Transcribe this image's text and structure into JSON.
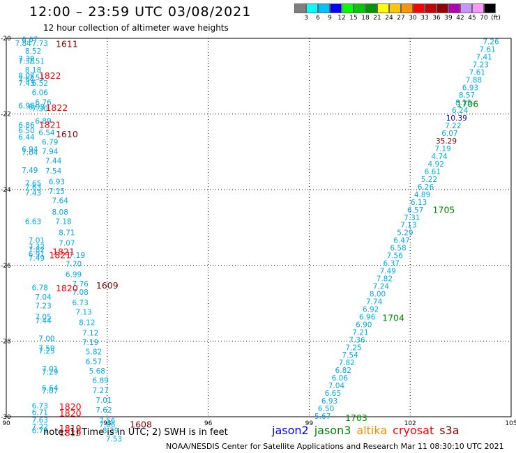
{
  "header": {
    "title": "12:00 – 23:59 UTC 03/08/2021",
    "subtitle": "12 hour collection of altimeter wave heights"
  },
  "colorbar": {
    "labels": [
      "3",
      "6",
      "9",
      "12",
      "15",
      "18",
      "21",
      "24",
      "27",
      "30",
      "33",
      "36",
      "39",
      "42",
      "45",
      "70",
      "(ft)"
    ],
    "colors": [
      "#7f7f7f",
      "#00ffff",
      "#00bfff",
      "#0000ff",
      "#00ff00",
      "#00c800",
      "#009600",
      "#ffff00",
      "#ffc800",
      "#ff9600",
      "#ff0000",
      "#c80000",
      "#960000",
      "#b400b4",
      "#c896ff",
      "#ff96ff",
      "#000000"
    ]
  },
  "axes": {
    "x_ticks": [
      "90",
      "93",
      "96",
      "99",
      "102",
      "105"
    ],
    "y_ticks": [
      "-20",
      "-22",
      "-24",
      "-26",
      "-28",
      "-30"
    ]
  },
  "labels": {
    "swh_color": "#00aaee",
    "time_colors": {
      "dark": "#8b0000",
      "red": "#ff0000",
      "green": "#008800"
    },
    "west_swh": [
      {
        "lon": 90.7,
        "lat": -20.05,
        "v": "6.67"
      },
      {
        "lon": 90.5,
        "lat": -20.15,
        "v": "7.84"
      },
      {
        "lon": 91.0,
        "lat": -20.15,
        "v": "7.73"
      },
      {
        "lon": 90.8,
        "lat": -20.35,
        "v": "8.52"
      },
      {
        "lon": 90.6,
        "lat": -20.55,
        "v": "7.39"
      },
      {
        "lon": 90.6,
        "lat": -20.62,
        "v": "7.38"
      },
      {
        "lon": 90.9,
        "lat": -20.62,
        "v": "7.51"
      },
      {
        "lon": 90.8,
        "lat": -20.85,
        "v": "8.18"
      },
      {
        "lon": 90.6,
        "lat": -21.0,
        "v": "8.07"
      },
      {
        "lon": 90.9,
        "lat": -21.05,
        "v": "7.51"
      },
      {
        "lon": 90.6,
        "lat": -21.1,
        "v": "7.67"
      },
      {
        "lon": 90.6,
        "lat": -21.2,
        "v": "7.43"
      },
      {
        "lon": 91.0,
        "lat": -21.2,
        "v": "6.52"
      },
      {
        "lon": 91.0,
        "lat": -21.45,
        "v": "6.06"
      },
      {
        "lon": 91.1,
        "lat": -21.7,
        "v": "6.76"
      },
      {
        "lon": 90.6,
        "lat": -21.8,
        "v": "6.98"
      },
      {
        "lon": 90.9,
        "lat": -21.82,
        "v": "6.93"
      },
      {
        "lon": 91.0,
        "lat": -21.87,
        "v": "7.30"
      },
      {
        "lon": 91.1,
        "lat": -22.2,
        "v": "6.89"
      },
      {
        "lon": 90.6,
        "lat": -22.3,
        "v": "6.86"
      },
      {
        "lon": 90.6,
        "lat": -22.45,
        "v": "6.50"
      },
      {
        "lon": 91.2,
        "lat": -22.5,
        "v": "6.54"
      },
      {
        "lon": 90.6,
        "lat": -22.62,
        "v": "6.44"
      },
      {
        "lon": 91.3,
        "lat": -22.75,
        "v": "6.79"
      },
      {
        "lon": 90.7,
        "lat": -22.95,
        "v": "6.94"
      },
      {
        "lon": 90.7,
        "lat": -23.03,
        "v": "7.04"
      },
      {
        "lon": 91.3,
        "lat": -23.0,
        "v": "7.94"
      },
      {
        "lon": 91.4,
        "lat": -23.25,
        "v": "7.44"
      },
      {
        "lon": 90.7,
        "lat": -23.5,
        "v": "7.49"
      },
      {
        "lon": 91.4,
        "lat": -23.52,
        "v": "7.54"
      },
      {
        "lon": 91.5,
        "lat": -23.8,
        "v": "6.93"
      },
      {
        "lon": 90.8,
        "lat": -23.85,
        "v": "7.65"
      },
      {
        "lon": 90.8,
        "lat": -23.95,
        "v": "7.63"
      },
      {
        "lon": 91.5,
        "lat": -24.05,
        "v": "7.15"
      },
      {
        "lon": 90.8,
        "lat": -24.1,
        "v": "7.43"
      },
      {
        "lon": 91.6,
        "lat": -24.3,
        "v": "7.64"
      },
      {
        "lon": 91.6,
        "lat": -24.6,
        "v": "8.08"
      },
      {
        "lon": 90.8,
        "lat": -24.85,
        "v": "6.63"
      },
      {
        "lon": 91.7,
        "lat": -24.85,
        "v": "7.18"
      },
      {
        "lon": 91.8,
        "lat": -25.15,
        "v": "8.71"
      },
      {
        "lon": 90.9,
        "lat": -25.35,
        "v": "7.01"
      },
      {
        "lon": 91.8,
        "lat": -25.42,
        "v": "7.07"
      },
      {
        "lon": 90.9,
        "lat": -25.52,
        "v": "7.32"
      },
      {
        "lon": 90.9,
        "lat": -25.6,
        "v": "7.82"
      },
      {
        "lon": 90.9,
        "lat": -25.72,
        "v": "6.91"
      },
      {
        "lon": 90.9,
        "lat": -25.82,
        "v": "7.49"
      },
      {
        "lon": 92.1,
        "lat": -25.75,
        "v": "7.19"
      },
      {
        "lon": 92.0,
        "lat": -25.98,
        "v": "7.70"
      },
      {
        "lon": 92.0,
        "lat": -26.25,
        "v": "6.99"
      },
      {
        "lon": 92.2,
        "lat": -26.5,
        "v": "7.76"
      },
      {
        "lon": 91.0,
        "lat": -26.6,
        "v": "6.78"
      },
      {
        "lon": 92.2,
        "lat": -26.72,
        "v": "7.08"
      },
      {
        "lon": 91.1,
        "lat": -26.85,
        "v": "7.04"
      },
      {
        "lon": 92.2,
        "lat": -27.0,
        "v": "6.73"
      },
      {
        "lon": 91.1,
        "lat": -27.08,
        "v": "7.23"
      },
      {
        "lon": 92.3,
        "lat": -27.25,
        "v": "7.13"
      },
      {
        "lon": 91.1,
        "lat": -27.38,
        "v": "7.05"
      },
      {
        "lon": 91.1,
        "lat": -27.48,
        "v": "7.44"
      },
      {
        "lon": 92.4,
        "lat": -27.52,
        "v": "8.12"
      },
      {
        "lon": 92.5,
        "lat": -27.8,
        "v": "7.12"
      },
      {
        "lon": 91.2,
        "lat": -27.95,
        "v": "7.00"
      },
      {
        "lon": 92.5,
        "lat": -28.05,
        "v": "7.19"
      },
      {
        "lon": 91.2,
        "lat": -28.2,
        "v": "7.59"
      },
      {
        "lon": 91.2,
        "lat": -28.28,
        "v": "7.25"
      },
      {
        "lon": 92.6,
        "lat": -28.3,
        "v": "5.82"
      },
      {
        "lon": 92.6,
        "lat": -28.55,
        "v": "6.57"
      },
      {
        "lon": 91.3,
        "lat": -28.75,
        "v": "7.01"
      },
      {
        "lon": 91.3,
        "lat": -28.83,
        "v": "7.29"
      },
      {
        "lon": 92.7,
        "lat": -28.8,
        "v": "5.68"
      },
      {
        "lon": 92.8,
        "lat": -29.05,
        "v": "6.89"
      },
      {
        "lon": 91.3,
        "lat": -29.25,
        "v": "6.64"
      },
      {
        "lon": 91.3,
        "lat": -29.33,
        "v": "7.07"
      },
      {
        "lon": 92.8,
        "lat": -29.32,
        "v": "7.27"
      },
      {
        "lon": 92.9,
        "lat": -29.58,
        "v": "7.01"
      },
      {
        "lon": 91.0,
        "lat": -29.72,
        "v": "6.73"
      },
      {
        "lon": 92.9,
        "lat": -29.83,
        "v": "7.62"
      },
      {
        "lon": 91.0,
        "lat": -29.9,
        "v": "6.71"
      },
      {
        "lon": 91.0,
        "lat": -30.1,
        "v": "7.63"
      },
      {
        "lon": 93.0,
        "lat": -30.12,
        "v": "7.56"
      },
      {
        "lon": 93.0,
        "lat": -30.22,
        "v": "7.86"
      },
      {
        "lon": 91.0,
        "lat": -30.28,
        "v": "7.22"
      },
      {
        "lon": 91.0,
        "lat": -30.38,
        "v": "6.79"
      },
      {
        "lon": 93.1,
        "lat": -30.38,
        "v": "8.39"
      },
      {
        "lon": 93.2,
        "lat": -30.6,
        "v": "7.53"
      }
    ],
    "west_times": [
      {
        "lon": 91.8,
        "lat": -20.17,
        "v": "1611",
        "c": "dark"
      },
      {
        "lon": 91.3,
        "lat": -21.0,
        "v": "1822",
        "c": "red"
      },
      {
        "lon": 91.5,
        "lat": -21.85,
        "v": "1822",
        "c": "red"
      },
      {
        "lon": 91.3,
        "lat": -22.3,
        "v": "1821",
        "c": "red"
      },
      {
        "lon": 91.8,
        "lat": -22.55,
        "v": "1610",
        "c": "dark"
      },
      {
        "lon": 91.7,
        "lat": -25.65,
        "v": "1821",
        "c": "red"
      },
      {
        "lon": 91.6,
        "lat": -25.75,
        "v": "1821",
        "c": "red"
      },
      {
        "lon": 91.8,
        "lat": -26.62,
        "v": "1820",
        "c": "red"
      },
      {
        "lon": 93.0,
        "lat": -26.55,
        "v": "1609",
        "c": "dark"
      },
      {
        "lon": 91.9,
        "lat": -29.75,
        "v": "1820",
        "c": "red"
      },
      {
        "lon": 91.9,
        "lat": -29.93,
        "v": "1820",
        "c": "red"
      },
      {
        "lon": 91.9,
        "lat": -30.32,
        "v": "1819",
        "c": "red"
      },
      {
        "lon": 91.9,
        "lat": -30.44,
        "v": "1819",
        "c": "red"
      },
      {
        "lon": 94.0,
        "lat": -30.22,
        "v": "1608",
        "c": "dark"
      }
    ],
    "east_swh": [
      "7.26",
      "7.61",
      "7.41",
      "7.23",
      "7.61",
      "7.88",
      "6.93",
      "8.57",
      "8.15",
      "6.24",
      "10.39",
      "7.22",
      "6.07",
      "35.29",
      "7.19",
      "4.74",
      "4.92",
      "6.61",
      "5.22",
      "6.26",
      "4.89",
      "6.13",
      "6.57",
      "7.31",
      "7.13",
      "5.29",
      "6.47",
      "6.58",
      "7.56",
      "6.37",
      "7.49",
      "7.82",
      "7.24",
      "8.00",
      "7.74",
      "6.92",
      "6.96",
      "6.90",
      "7.21",
      "7.36",
      "7.25",
      "7.54",
      "7.82",
      "6.82",
      "6.06",
      "7.04",
      "6.65",
      "6.93",
      "6.50",
      "5.67"
    ],
    "east_special": {
      "10.39": "#000080",
      "35.29": "#8b0000"
    },
    "east_track": {
      "lon_start": 104.4,
      "lat_start": -20.1,
      "lon_end": 99.4,
      "lat_end": -30.0
    },
    "east_times": [
      {
        "lon": 103.7,
        "lat": -21.75,
        "v": "1706"
      },
      {
        "lon": 103.0,
        "lat": -24.55,
        "v": "1705"
      },
      {
        "lon": 101.5,
        "lat": -27.4,
        "v": "1704"
      },
      {
        "lon": 100.4,
        "lat": -30.05,
        "v": "1703"
      }
    ]
  },
  "footer": {
    "note": "note: 1) Time is in UTC; 2) SWH is in feet",
    "credit": "NOAA/NESDIS Center for Satellite Applications and Research    Mar 11 08:30:10 UTC 2021",
    "legend": [
      {
        "name": "jason2",
        "color": "#0000ff"
      },
      {
        "name": "jason3",
        "color": "#008800"
      },
      {
        "name": "altika",
        "color": "#ff8c00"
      },
      {
        "name": "cryosat",
        "color": "#ff0000"
      },
      {
        "name": "s3a",
        "color": "#8b0000"
      }
    ]
  }
}
